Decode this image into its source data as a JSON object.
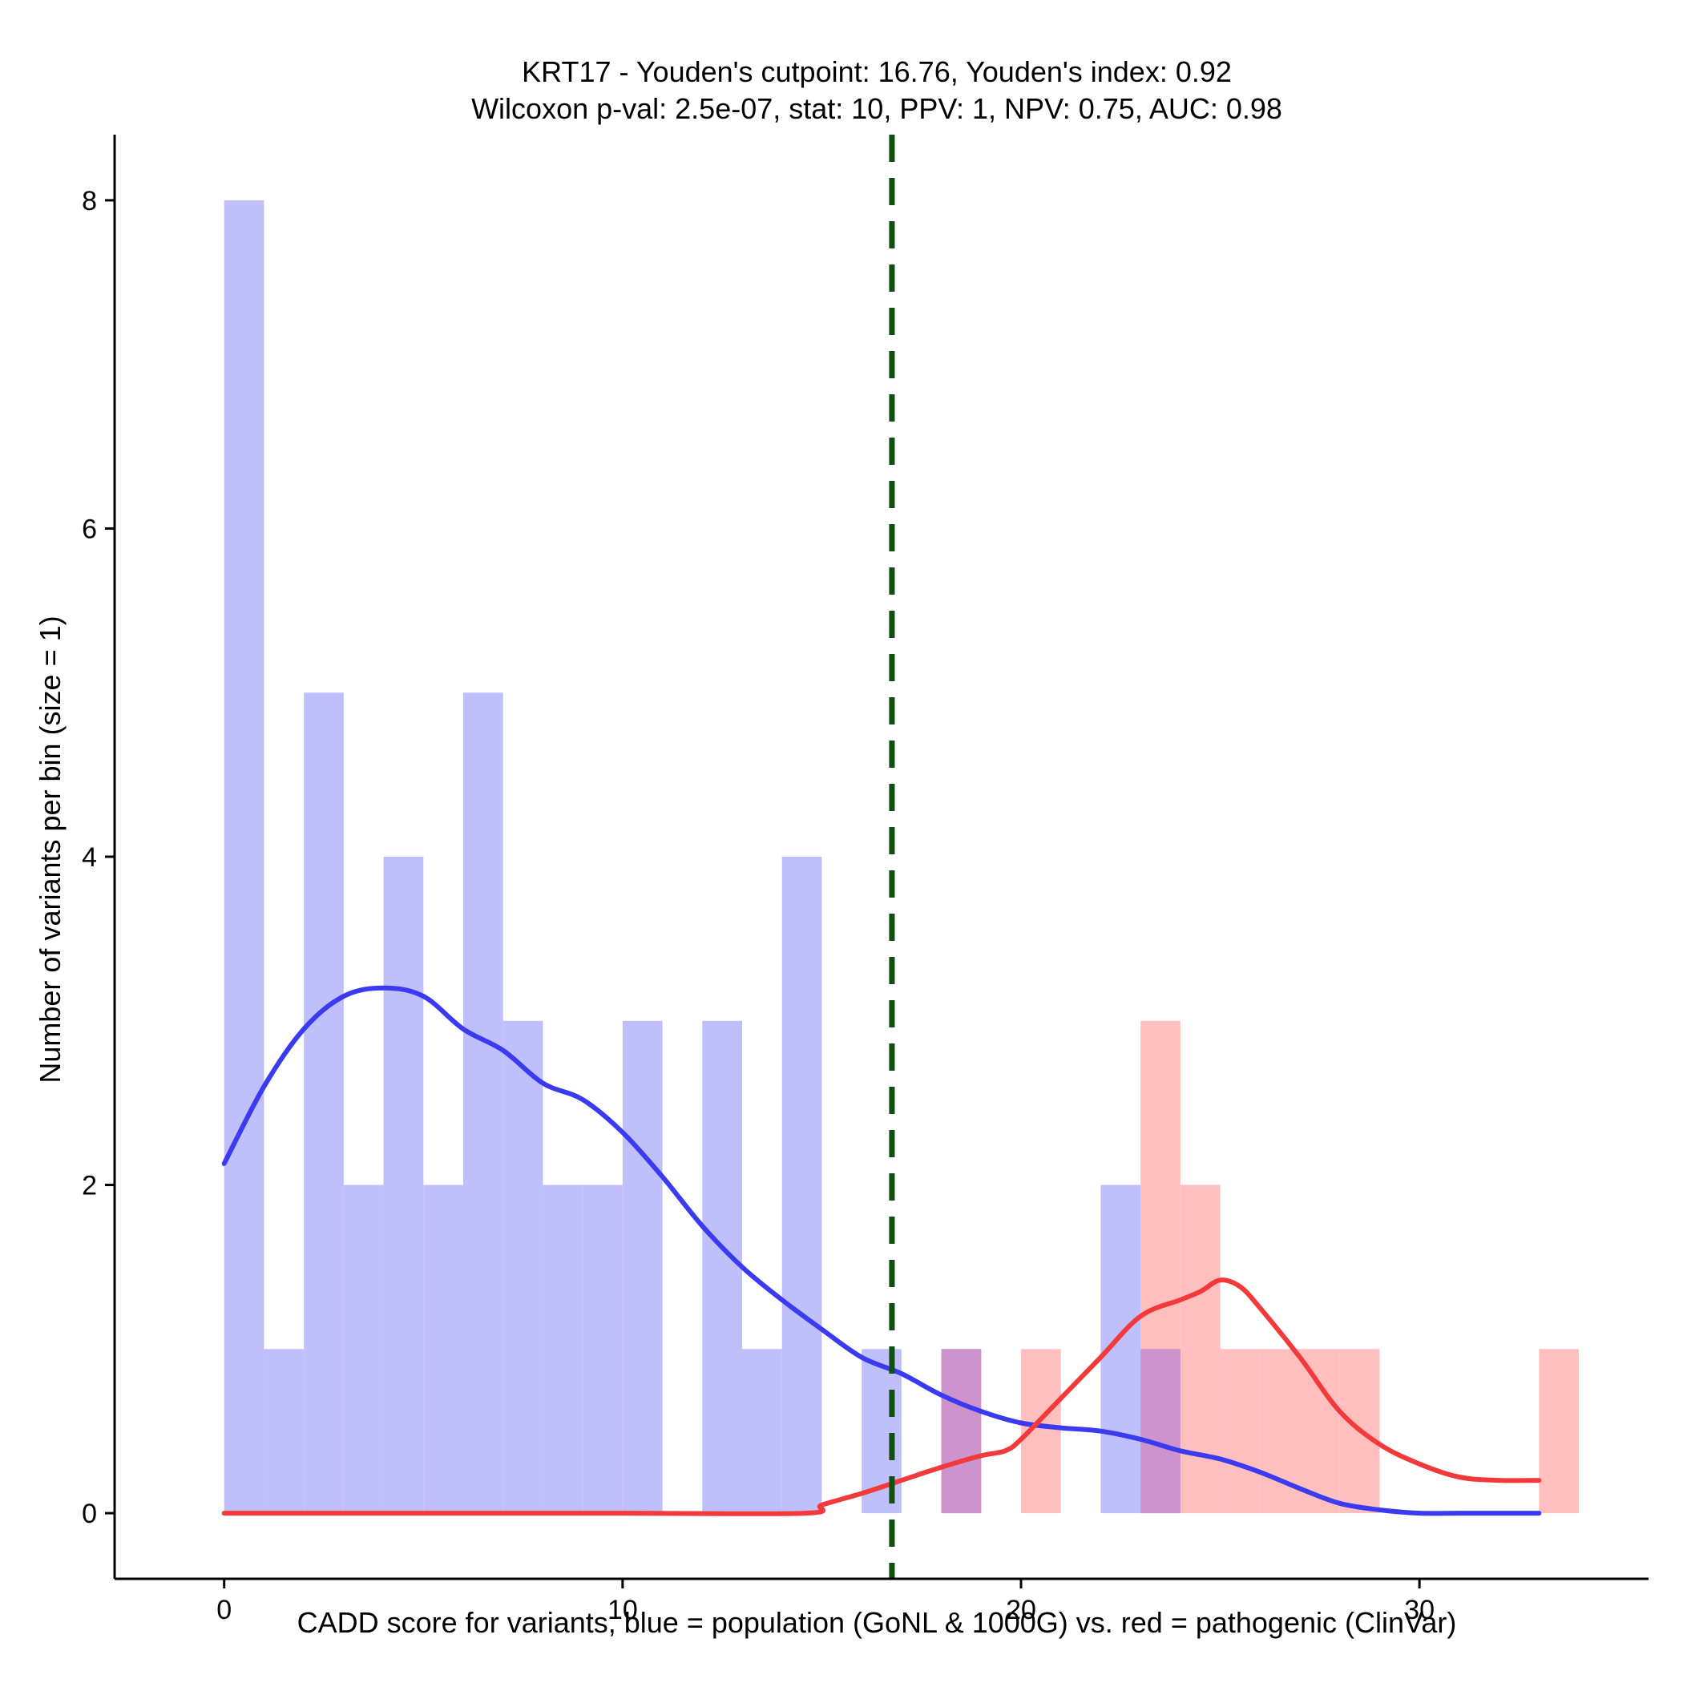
{
  "chart_data": {
    "type": "bar",
    "title_line1": "KRT17 - Youden's cutpoint: 16.76, Youden's index: 0.92",
    "title_line2": "Wilcoxon p-val: 2.5e-07, stat: 10, PPV: 1, NPV: 0.75, AUC: 0.98",
    "xlabel": "CADD score for variants, blue = population (GoNL & 1000G) vs. red = pathogenic (ClinVar)",
    "ylabel": "Number of variants per bin (size = 1)",
    "xlim": [
      -2.75,
      35.75
    ],
    "ylim": [
      -0.4,
      8.4
    ],
    "x_ticks": [
      0,
      10,
      20,
      30
    ],
    "x_tick_labels": [
      "0",
      "10",
      "20",
      "30"
    ],
    "y_ticks": [
      0,
      2,
      4,
      6,
      8
    ],
    "y_tick_labels": [
      "0",
      "2",
      "4",
      "6",
      "8"
    ],
    "bin_width": 1,
    "cutpoint": 16.76,
    "series": [
      {
        "name": "population (GoNL & 1000G)",
        "color": "#bfbffb",
        "bins": [
          {
            "x": 0,
            "count": 8
          },
          {
            "x": 1,
            "count": 1
          },
          {
            "x": 2,
            "count": 5
          },
          {
            "x": 3,
            "count": 2
          },
          {
            "x": 4,
            "count": 4
          },
          {
            "x": 5,
            "count": 2
          },
          {
            "x": 6,
            "count": 5
          },
          {
            "x": 7,
            "count": 3
          },
          {
            "x": 8,
            "count": 2
          },
          {
            "x": 9,
            "count": 2
          },
          {
            "x": 10,
            "count": 3
          },
          {
            "x": 12,
            "count": 3
          },
          {
            "x": 13,
            "count": 1
          },
          {
            "x": 14,
            "count": 4
          },
          {
            "x": 16,
            "count": 1
          },
          {
            "x": 18,
            "count": 1
          },
          {
            "x": 22,
            "count": 2
          },
          {
            "x": 23,
            "count": 1
          }
        ]
      },
      {
        "name": "pathogenic (ClinVar)",
        "color": "#ffbfbf",
        "bins": [
          {
            "x": 18,
            "count": 1
          },
          {
            "x": 20,
            "count": 1
          },
          {
            "x": 23,
            "count": 3
          },
          {
            "x": 24,
            "count": 2
          },
          {
            "x": 25,
            "count": 1
          },
          {
            "x": 26,
            "count": 1
          },
          {
            "x": 27,
            "count": 1
          },
          {
            "x": 28,
            "count": 1
          },
          {
            "x": 33,
            "count": 1
          }
        ]
      }
    ],
    "density_lines": [
      {
        "name": "population density",
        "color": "#3a3af0",
        "x": [
          0,
          1,
          2,
          3,
          4,
          5,
          6,
          7,
          8,
          9,
          10,
          11,
          12,
          13,
          14,
          15,
          16,
          17,
          18,
          19,
          20,
          21,
          22,
          23,
          24,
          25,
          26,
          27,
          28,
          29,
          30,
          31,
          32,
          33
        ],
        "y": [
          2.13,
          2.6,
          2.95,
          3.15,
          3.2,
          3.15,
          2.95,
          2.82,
          2.62,
          2.52,
          2.32,
          2.05,
          1.75,
          1.5,
          1.3,
          1.12,
          0.95,
          0.85,
          0.72,
          0.62,
          0.55,
          0.52,
          0.5,
          0.45,
          0.38,
          0.33,
          0.25,
          0.15,
          0.06,
          0.02,
          0.0,
          0.0,
          0.0,
          0.0
        ]
      },
      {
        "name": "pathogenic density",
        "color": "#f23a3a",
        "x": [
          0,
          5,
          10,
          14.6,
          15,
          16,
          17,
          18,
          19,
          19.6,
          20,
          21,
          22,
          23,
          24,
          24.5,
          25,
          25.5,
          26,
          27,
          28,
          29,
          30,
          31,
          32,
          33
        ],
        "y": [
          0,
          0,
          0,
          0,
          0.05,
          0.12,
          0.2,
          0.28,
          0.35,
          0.38,
          0.45,
          0.7,
          0.95,
          1.2,
          1.3,
          1.35,
          1.42,
          1.38,
          1.25,
          0.95,
          0.62,
          0.42,
          0.3,
          0.22,
          0.2,
          0.2
        ]
      }
    ],
    "overlap_color": "#cc93cc",
    "cutpoint_color": "#0f4f0f"
  }
}
